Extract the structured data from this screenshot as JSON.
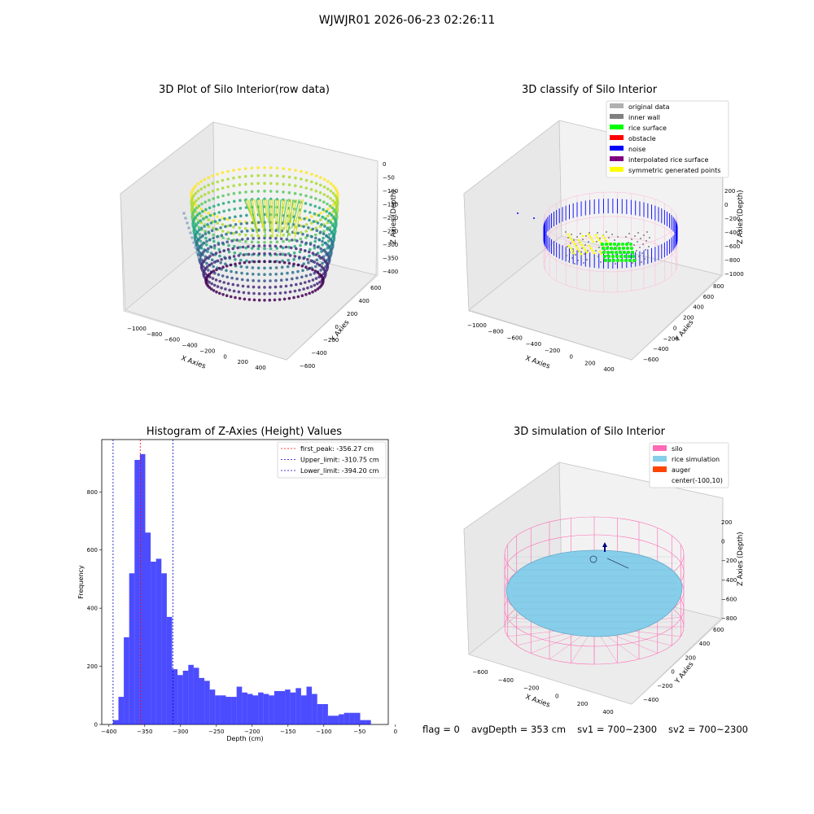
{
  "window": {
    "suptitle": "WJWJR01 2026-06-23 02:26:11"
  },
  "panels": {
    "raw": {
      "title": "3D Plot of Silo Interior(row data)",
      "xlabel": "X Axies",
      "ylabel": "Y Axies",
      "zlabel": "Z Axies (Depth)",
      "xticks": [
        "−1000",
        "−800",
        "−600",
        "−400",
        "−200",
        "0",
        "200",
        "400"
      ],
      "yticks": [
        "−600",
        "−400",
        "−200",
        "0",
        "200",
        "400",
        "600"
      ],
      "zticks": [
        "0",
        "−50",
        "−100",
        "−150",
        "−200",
        "−250",
        "−300",
        "−350",
        "−400"
      ]
    },
    "classify": {
      "title": "3D classify of Silo Interior",
      "xlabel": "X Axies",
      "ylabel": "Y Axies",
      "zlabel": "Z Axies (Depth)",
      "xticks": [
        "−1000",
        "−800",
        "−600",
        "−400",
        "−200",
        "0",
        "200",
        "400"
      ],
      "yticks": [
        "−600",
        "−400",
        "−200",
        "0",
        "200",
        "400",
        "600",
        "800"
      ],
      "zticks": [
        "200",
        "0",
        "−200",
        "−400",
        "−600",
        "−800",
        "−1000"
      ],
      "legend": [
        {
          "label": "original data",
          "color": "#b0b0b0"
        },
        {
          "label": "inner wall",
          "color": "#808080"
        },
        {
          "label": "rice surface",
          "color": "#00ff00"
        },
        {
          "label": "obstacle",
          "color": "#ff0000"
        },
        {
          "label": "noise",
          "color": "#0000ff"
        },
        {
          "label": "interpolated rice surface",
          "color": "#800080"
        },
        {
          "label": "symmetric generated points",
          "color": "#ffff00"
        }
      ]
    },
    "simulation": {
      "title": "3D simulation of Silo Interior",
      "xlabel": "X Axies",
      "ylabel": "Y Axies",
      "zlabel": "Z Axies (Depth)",
      "xticks": [
        "−600",
        "−400",
        "−200",
        "0",
        "200",
        "400"
      ],
      "yticks": [
        "−400",
        "−200",
        "0",
        "200",
        "400",
        "600"
      ],
      "zticks": [
        "200",
        "0",
        "−200",
        "−400",
        "−600",
        "−800"
      ],
      "legend": [
        {
          "label": "silo",
          "color": "#ff69b4"
        },
        {
          "label": "rice simulation",
          "color": "#87ceeb"
        },
        {
          "label": "auger",
          "color": "#ff4500"
        },
        {
          "label": "center(-100,10)",
          "color": ""
        }
      ]
    }
  },
  "footer": {
    "flag": "flag = 0",
    "avg": "avgDepth = 353 cm",
    "sv1": "sv1 = 700~2300",
    "sv2": "sv2 = 700~2300"
  },
  "chart_data": {
    "type": "bar",
    "title": "Histogram of Z-Axies (Height) Values",
    "xlabel": "Depth (cm)",
    "ylabel": "Frequency",
    "xlim": [
      -410,
      -10
    ],
    "ylim": [
      0,
      980
    ],
    "xticks": [
      -400,
      -350,
      -300,
      -250,
      -200,
      -150,
      -100,
      -50,
      0
    ],
    "xtick_labels": [
      "−400",
      "−350",
      "−300",
      "−250",
      "−200",
      "−150",
      "−100",
      "−50",
      "0"
    ],
    "yticks": [
      0,
      200,
      400,
      600,
      800
    ],
    "bin_start": -394.2,
    "bin_width": 7.5,
    "values": [
      15,
      95,
      300,
      520,
      910,
      930,
      660,
      560,
      570,
      520,
      370,
      190,
      170,
      185,
      205,
      195,
      160,
      150,
      120,
      100,
      100,
      95,
      95,
      130,
      110,
      105,
      100,
      110,
      105,
      100,
      115,
      115,
      120,
      110,
      125,
      100,
      130,
      105,
      70,
      70,
      30,
      30,
      35,
      40,
      40,
      40,
      15,
      15
    ],
    "bar_color": "#0000ff",
    "vlines": [
      {
        "label": "first_peak: -356.27 cm",
        "x": -356.27,
        "color": "#ff0000"
      },
      {
        "label": "Upper_limit: -310.75 cm",
        "x": -310.75,
        "color": "#0000cc"
      },
      {
        "label": "Lower_limit: -394.20 cm",
        "x": -394.2,
        "color": "#0000cc"
      }
    ]
  }
}
